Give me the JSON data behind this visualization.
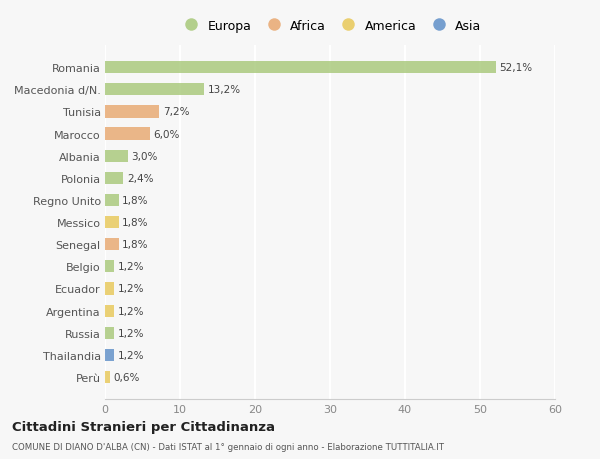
{
  "countries": [
    "Romania",
    "Macedonia d/N.",
    "Tunisia",
    "Marocco",
    "Albania",
    "Polonia",
    "Regno Unito",
    "Messico",
    "Senegal",
    "Belgio",
    "Ecuador",
    "Argentina",
    "Russia",
    "Thailandia",
    "Perù"
  ],
  "values": [
    52.1,
    13.2,
    7.2,
    6.0,
    3.0,
    2.4,
    1.8,
    1.8,
    1.8,
    1.2,
    1.2,
    1.2,
    1.2,
    1.2,
    0.6
  ],
  "labels": [
    "52,1%",
    "13,2%",
    "7,2%",
    "6,0%",
    "3,0%",
    "2,4%",
    "1,8%",
    "1,8%",
    "1,8%",
    "1,2%",
    "1,2%",
    "1,2%",
    "1,2%",
    "1,2%",
    "0,6%"
  ],
  "categories": [
    "Europa",
    "Europa",
    "Africa",
    "Africa",
    "Europa",
    "Europa",
    "Europa",
    "America",
    "Africa",
    "Europa",
    "America",
    "America",
    "Europa",
    "Asia",
    "America"
  ],
  "colors": {
    "Europa": "#a8c87a",
    "Africa": "#e8a870",
    "America": "#e8c858",
    "Asia": "#6090c8"
  },
  "legend_labels": [
    "Europa",
    "Africa",
    "America",
    "Asia"
  ],
  "legend_colors": [
    "#a8c87a",
    "#e8a870",
    "#e8c858",
    "#6090c8"
  ],
  "xlim": [
    0,
    60
  ],
  "xticks": [
    0,
    10,
    20,
    30,
    40,
    50,
    60
  ],
  "title": "Cittadini Stranieri per Cittadinanza",
  "subtitle": "COMUNE DI DIANO D'ALBA (CN) - Dati ISTAT al 1° gennaio di ogni anno - Elaborazione TUTTITALIA.IT",
  "bg_color": "#f7f7f7",
  "bar_height": 0.55
}
